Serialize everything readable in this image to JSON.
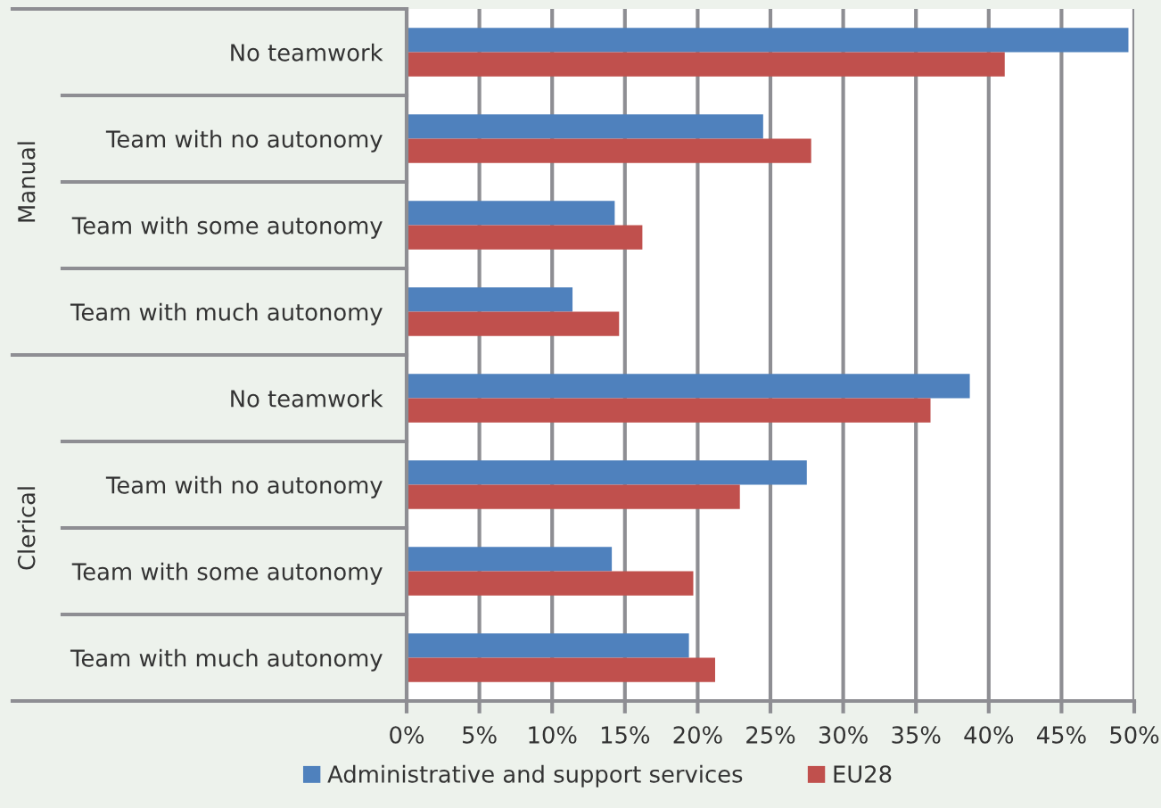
{
  "chart_data": {
    "type": "bar",
    "orientation": "horizontal",
    "categories": [
      "No teamwork",
      "Team with no autonomy",
      "Team with some autonomy",
      "Team with much autonomy",
      "No teamwork",
      "Team with no autonomy",
      "Team with some autonomy",
      "Team with much autonomy"
    ],
    "series": [
      {
        "name": "Administrative and support services",
        "color": "#4f81bd",
        "values": [
          49.6,
          24.5,
          14.3,
          11.4,
          38.7,
          27.5,
          14.1,
          19.4
        ]
      },
      {
        "name": "EU28",
        "color": "#c0504d",
        "values": [
          41.1,
          27.8,
          16.2,
          14.6,
          36.0,
          22.9,
          19.7,
          21.2
        ]
      }
    ],
    "xlim": [
      0,
      50
    ],
    "xticks": [
      {
        "value": 0,
        "label": "0%"
      },
      {
        "value": 5,
        "label": "5%"
      },
      {
        "value": 10,
        "label": "10%"
      },
      {
        "value": 15,
        "label": "15%"
      },
      {
        "value": 20,
        "label": "20%"
      },
      {
        "value": 25,
        "label": "25%"
      },
      {
        "value": 30,
        "label": "30%"
      },
      {
        "value": 35,
        "label": "35%"
      },
      {
        "value": 40,
        "label": "40%"
      },
      {
        "value": 45,
        "label": "45%"
      },
      {
        "value": 50,
        "label": "50%"
      }
    ],
    "grid": "x",
    "legend": "bottom",
    "annotations": [
      "Manual",
      "Clerical"
    ]
  }
}
